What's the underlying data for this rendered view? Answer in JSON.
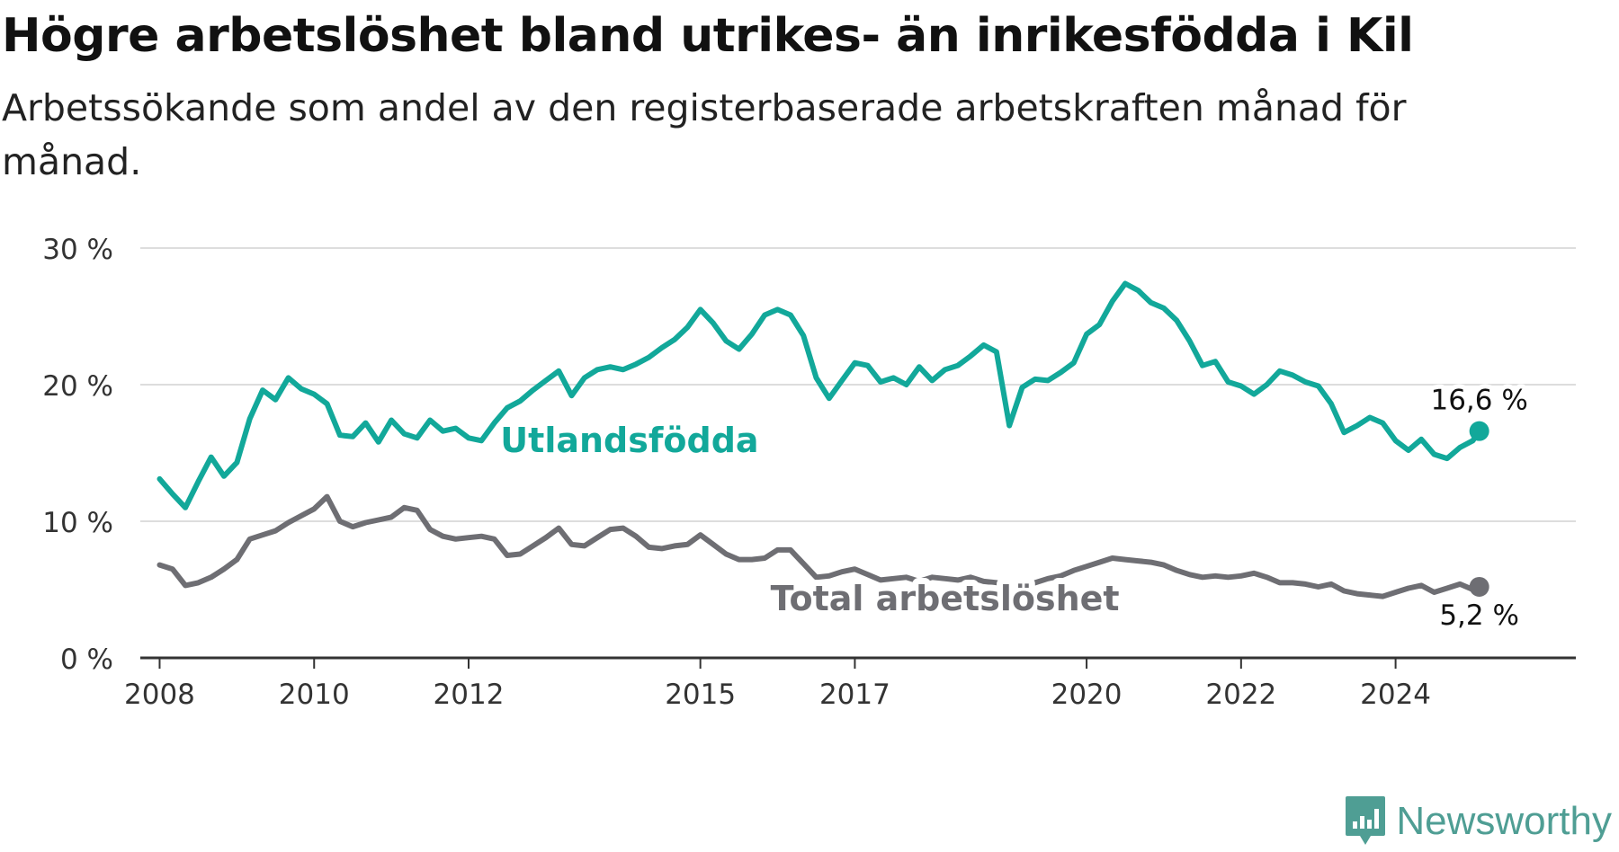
{
  "title": "Högre arbetslöshet bland utrikes- än inrikesfödda i Kil",
  "subtitle": "Arbetssökande som andel av den registerbaserade arbetskraften månad för månad.",
  "brand": "Newsworthy",
  "colors": {
    "foreign_born": "#12a89a",
    "total": "#6e6e73",
    "grid": "#dddddd",
    "axis": "#333333"
  },
  "chart_data": {
    "type": "line",
    "title": "Högre arbetslöshet bland utrikes- än inrikesfödda i Kil",
    "subtitle": "Arbetssökande som andel av den registerbaserade arbetskraften månad för månad.",
    "xlabel": "",
    "ylabel": "",
    "x_range": [
      "2007-10",
      "2026-05"
    ],
    "ylim": [
      0,
      30
    ],
    "y_ticks": [
      0,
      10,
      20,
      30
    ],
    "y_tick_labels": [
      "0 %",
      "10 %",
      "20 %",
      "30 %"
    ],
    "x_ticks": [
      "2008-01",
      "2010-01",
      "2012-01",
      "2015-01",
      "2017-01",
      "2020-01",
      "2022-01",
      "2024-01"
    ],
    "x_tick_labels": [
      "2008",
      "2010",
      "2012",
      "2015",
      "2017",
      "2020",
      "2022",
      "2024"
    ],
    "grid": true,
    "legend": "inline labels",
    "series": [
      {
        "name": "Utlandsfödda",
        "end_label": "16,6 %",
        "points": [
          [
            "2008-01",
            13.1
          ],
          [
            "2008-03",
            12.0
          ],
          [
            "2008-05",
            11.0
          ],
          [
            "2008-07",
            12.9
          ],
          [
            "2008-09",
            14.7
          ],
          [
            "2008-11",
            13.3
          ],
          [
            "2009-01",
            14.3
          ],
          [
            "2009-03",
            17.5
          ],
          [
            "2009-05",
            19.6
          ],
          [
            "2009-07",
            18.9
          ],
          [
            "2009-09",
            20.5
          ],
          [
            "2009-11",
            19.7
          ],
          [
            "2010-01",
            19.3
          ],
          [
            "2010-03",
            18.6
          ],
          [
            "2010-05",
            16.3
          ],
          [
            "2010-07",
            16.2
          ],
          [
            "2010-09",
            17.2
          ],
          [
            "2010-11",
            15.8
          ],
          [
            "2011-01",
            17.4
          ],
          [
            "2011-03",
            16.4
          ],
          [
            "2011-05",
            16.1
          ],
          [
            "2011-07",
            17.4
          ],
          [
            "2011-09",
            16.6
          ],
          [
            "2011-11",
            16.8
          ],
          [
            "2012-01",
            16.1
          ],
          [
            "2012-03",
            15.9
          ],
          [
            "2012-05",
            17.2
          ],
          [
            "2012-07",
            18.3
          ],
          [
            "2012-09",
            18.8
          ],
          [
            "2012-11",
            19.6
          ],
          [
            "2013-01",
            20.3
          ],
          [
            "2013-03",
            21.0
          ],
          [
            "2013-05",
            19.2
          ],
          [
            "2013-07",
            20.5
          ],
          [
            "2013-09",
            21.1
          ],
          [
            "2013-11",
            21.3
          ],
          [
            "2014-01",
            21.1
          ],
          [
            "2014-03",
            21.5
          ],
          [
            "2014-05",
            22.0
          ],
          [
            "2014-07",
            22.7
          ],
          [
            "2014-09",
            23.3
          ],
          [
            "2014-11",
            24.2
          ],
          [
            "2015-01",
            25.5
          ],
          [
            "2015-03",
            24.5
          ],
          [
            "2015-05",
            23.2
          ],
          [
            "2015-07",
            22.6
          ],
          [
            "2015-09",
            23.7
          ],
          [
            "2015-11",
            25.1
          ],
          [
            "2016-01",
            25.5
          ],
          [
            "2016-03",
            25.1
          ],
          [
            "2016-05",
            23.6
          ],
          [
            "2016-07",
            20.5
          ],
          [
            "2016-09",
            19.0
          ],
          [
            "2016-11",
            20.3
          ],
          [
            "2017-01",
            21.6
          ],
          [
            "2017-03",
            21.4
          ],
          [
            "2017-05",
            20.2
          ],
          [
            "2017-07",
            20.5
          ],
          [
            "2017-09",
            20.0
          ],
          [
            "2017-11",
            21.3
          ],
          [
            "2018-01",
            20.3
          ],
          [
            "2018-03",
            21.1
          ],
          [
            "2018-05",
            21.4
          ],
          [
            "2018-07",
            22.1
          ],
          [
            "2018-09",
            22.9
          ],
          [
            "2018-11",
            22.4
          ],
          [
            "2019-01",
            17.0
          ],
          [
            "2019-03",
            19.8
          ],
          [
            "2019-05",
            20.4
          ],
          [
            "2019-07",
            20.3
          ],
          [
            "2019-09",
            20.9
          ],
          [
            "2019-11",
            21.6
          ],
          [
            "2020-01",
            23.7
          ],
          [
            "2020-03",
            24.4
          ],
          [
            "2020-05",
            26.1
          ],
          [
            "2020-07",
            27.4
          ],
          [
            "2020-09",
            26.9
          ],
          [
            "2020-11",
            26.0
          ],
          [
            "2021-01",
            25.6
          ],
          [
            "2021-03",
            24.7
          ],
          [
            "2021-05",
            23.2
          ],
          [
            "2021-07",
            21.4
          ],
          [
            "2021-09",
            21.7
          ],
          [
            "2021-11",
            20.2
          ],
          [
            "2022-01",
            19.9
          ],
          [
            "2022-03",
            19.3
          ],
          [
            "2022-05",
            20.0
          ],
          [
            "2022-07",
            21.0
          ],
          [
            "2022-09",
            20.7
          ],
          [
            "2022-11",
            20.2
          ],
          [
            "2023-01",
            19.9
          ],
          [
            "2023-03",
            18.6
          ],
          [
            "2023-05",
            16.5
          ],
          [
            "2023-07",
            17.0
          ],
          [
            "2023-09",
            17.6
          ],
          [
            "2023-11",
            17.2
          ],
          [
            "2024-01",
            15.9
          ],
          [
            "2024-03",
            15.2
          ],
          [
            "2024-05",
            16.0
          ],
          [
            "2024-07",
            14.9
          ],
          [
            "2024-09",
            14.6
          ],
          [
            "2024-11",
            15.4
          ],
          [
            "2025-01",
            15.9
          ],
          [
            "2025-02",
            16.6
          ]
        ]
      },
      {
        "name": "Total arbetslöshet",
        "end_label": "5,2 %",
        "points": [
          [
            "2008-01",
            6.8
          ],
          [
            "2008-03",
            6.5
          ],
          [
            "2008-05",
            5.3
          ],
          [
            "2008-07",
            5.5
          ],
          [
            "2008-09",
            5.9
          ],
          [
            "2008-11",
            6.5
          ],
          [
            "2009-01",
            7.2
          ],
          [
            "2009-03",
            8.7
          ],
          [
            "2009-05",
            9.0
          ],
          [
            "2009-07",
            9.3
          ],
          [
            "2009-09",
            9.9
          ],
          [
            "2009-11",
            10.4
          ],
          [
            "2010-01",
            10.9
          ],
          [
            "2010-03",
            11.8
          ],
          [
            "2010-05",
            10.0
          ],
          [
            "2010-07",
            9.6
          ],
          [
            "2010-09",
            9.9
          ],
          [
            "2010-11",
            10.1
          ],
          [
            "2011-01",
            10.3
          ],
          [
            "2011-03",
            11.0
          ],
          [
            "2011-05",
            10.8
          ],
          [
            "2011-07",
            9.4
          ],
          [
            "2011-09",
            8.9
          ],
          [
            "2011-11",
            8.7
          ],
          [
            "2012-01",
            8.8
          ],
          [
            "2012-03",
            8.9
          ],
          [
            "2012-05",
            8.7
          ],
          [
            "2012-07",
            7.5
          ],
          [
            "2012-09",
            7.6
          ],
          [
            "2012-11",
            8.2
          ],
          [
            "2013-01",
            8.8
          ],
          [
            "2013-03",
            9.5
          ],
          [
            "2013-05",
            8.3
          ],
          [
            "2013-07",
            8.2
          ],
          [
            "2013-09",
            8.8
          ],
          [
            "2013-11",
            9.4
          ],
          [
            "2014-01",
            9.5
          ],
          [
            "2014-03",
            8.9
          ],
          [
            "2014-05",
            8.1
          ],
          [
            "2014-07",
            8.0
          ],
          [
            "2014-09",
            8.2
          ],
          [
            "2014-11",
            8.3
          ],
          [
            "2015-01",
            9.0
          ],
          [
            "2015-03",
            8.3
          ],
          [
            "2015-05",
            7.6
          ],
          [
            "2015-07",
            7.2
          ],
          [
            "2015-09",
            7.2
          ],
          [
            "2015-11",
            7.3
          ],
          [
            "2016-01",
            7.9
          ],
          [
            "2016-03",
            7.9
          ],
          [
            "2016-05",
            6.9
          ],
          [
            "2016-07",
            5.9
          ],
          [
            "2016-09",
            6.0
          ],
          [
            "2016-11",
            6.3
          ],
          [
            "2017-01",
            6.5
          ],
          [
            "2017-03",
            6.1
          ],
          [
            "2017-05",
            5.7
          ],
          [
            "2017-07",
            5.8
          ],
          [
            "2017-09",
            5.9
          ],
          [
            "2017-11",
            5.6
          ],
          [
            "2018-01",
            5.9
          ],
          [
            "2018-03",
            5.8
          ],
          [
            "2018-05",
            5.7
          ],
          [
            "2018-07",
            5.9
          ],
          [
            "2018-09",
            5.6
          ],
          [
            "2018-11",
            5.5
          ],
          [
            "2019-01",
            5.2
          ],
          [
            "2019-03",
            5.4
          ],
          [
            "2019-05",
            5.5
          ],
          [
            "2019-07",
            5.8
          ],
          [
            "2019-09",
            6.0
          ],
          [
            "2019-11",
            6.4
          ],
          [
            "2020-01",
            6.7
          ],
          [
            "2020-03",
            7.0
          ],
          [
            "2020-05",
            7.3
          ],
          [
            "2020-07",
            7.2
          ],
          [
            "2020-09",
            7.1
          ],
          [
            "2020-11",
            7.0
          ],
          [
            "2021-01",
            6.8
          ],
          [
            "2021-03",
            6.4
          ],
          [
            "2021-05",
            6.1
          ],
          [
            "2021-07",
            5.9
          ],
          [
            "2021-09",
            6.0
          ],
          [
            "2021-11",
            5.9
          ],
          [
            "2022-01",
            6.0
          ],
          [
            "2022-03",
            6.2
          ],
          [
            "2022-05",
            5.9
          ],
          [
            "2022-07",
            5.5
          ],
          [
            "2022-09",
            5.5
          ],
          [
            "2022-11",
            5.4
          ],
          [
            "2023-01",
            5.2
          ],
          [
            "2023-03",
            5.4
          ],
          [
            "2023-05",
            4.9
          ],
          [
            "2023-07",
            4.7
          ],
          [
            "2023-09",
            4.6
          ],
          [
            "2023-11",
            4.5
          ],
          [
            "2024-01",
            4.8
          ],
          [
            "2024-03",
            5.1
          ],
          [
            "2024-05",
            5.3
          ],
          [
            "2024-07",
            4.8
          ],
          [
            "2024-09",
            5.1
          ],
          [
            "2024-11",
            5.4
          ],
          [
            "2025-01",
            5.0
          ],
          [
            "2025-02",
            5.2
          ]
        ]
      }
    ]
  }
}
